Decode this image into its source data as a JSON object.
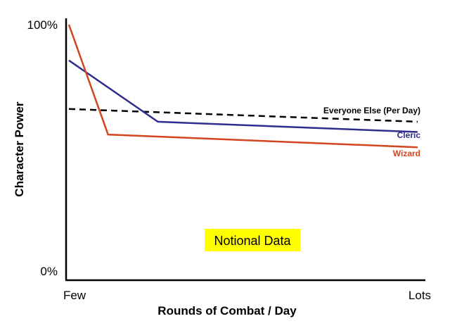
{
  "chart_data": {
    "type": "line",
    "xlabel": "Rounds of Combat / Day",
    "ylabel": "Character Power",
    "ylim": [
      0,
      100
    ],
    "xlim": [
      0,
      1
    ],
    "x_tick_labels": [
      "Few",
      "Lots"
    ],
    "y_tick_labels": [
      "100%",
      "0%"
    ],
    "annotation": "Notional Data",
    "grid": false,
    "series": [
      {
        "name": "Wizard",
        "color": "#d2451e",
        "dash": false,
        "x": [
          0.0,
          0.11,
          0.98
        ],
        "y": [
          100,
          57,
          52
        ]
      },
      {
        "name": "Cleric",
        "color": "#2e2e8c",
        "dash": false,
        "x": [
          0.0,
          0.25,
          0.98
        ],
        "y": [
          86,
          62,
          58
        ]
      },
      {
        "name": "Everyone Else (Per Day)",
        "color": "#000000",
        "dash": true,
        "x": [
          0.0,
          0.98
        ],
        "y": [
          67,
          62
        ]
      }
    ]
  },
  "colors": {
    "annotation_bg": "#ffff00",
    "axis": "#000000"
  }
}
